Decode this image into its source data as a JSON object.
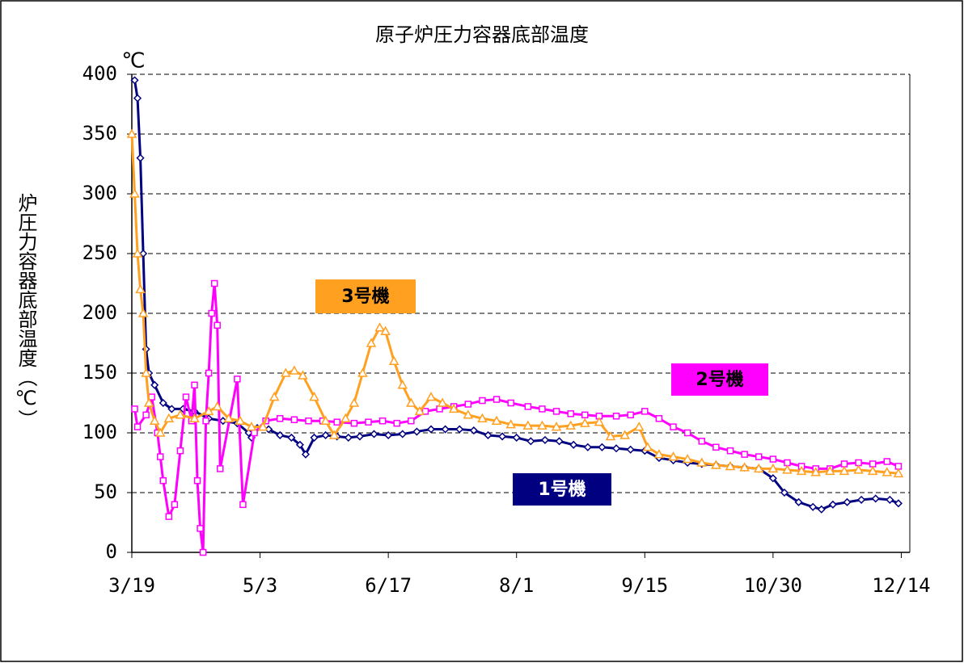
{
  "chart_data": {
    "type": "scatter",
    "title": "原子炉圧力容器底部温度",
    "y_label": "炉圧力容器底部温度（℃）",
    "y_unit": "℃",
    "xlim": [
      "3/19",
      "12/17"
    ],
    "xticks": [
      "3/19",
      "5/3",
      "6/17",
      "8/1",
      "9/15",
      "10/30",
      "12/14"
    ],
    "ylim": [
      0,
      400
    ],
    "yticks": [
      0,
      50,
      100,
      150,
      200,
      250,
      300,
      350,
      400
    ],
    "grid": true,
    "series": [
      {
        "name": "1号機",
        "color": "#000080",
        "marker": "diamond",
        "x": [
          "3/20",
          "3/21",
          "3/22",
          "3/23",
          "3/24",
          "3/25",
          "3/27",
          "3/30",
          "4/2",
          "4/6",
          "4/10",
          "4/15",
          "4/20",
          "4/25",
          "4/29",
          "4/30",
          "5/2",
          "5/6",
          "5/10",
          "5/14",
          "5/17",
          "5/19",
          "5/22",
          "5/26",
          "5/30",
          "6/3",
          "6/7",
          "6/12",
          "6/17",
          "6/22",
          "6/27",
          "7/2",
          "7/7",
          "7/12",
          "7/17",
          "7/22",
          "7/27",
          "8/1",
          "8/6",
          "8/11",
          "8/16",
          "8/21",
          "8/26",
          "8/31",
          "9/5",
          "9/10",
          "9/15",
          "9/20",
          "9/25",
          "9/30",
          "10/5",
          "10/10",
          "10/15",
          "10/20",
          "10/25",
          "10/30",
          "11/3",
          "11/8",
          "11/13",
          "11/16",
          "11/20",
          "11/25",
          "11/30",
          "12/5",
          "12/10",
          "12/13"
        ],
        "values": [
          395,
          380,
          330,
          250,
          170,
          150,
          140,
          125,
          120,
          120,
          118,
          112,
          110,
          108,
          100,
          96,
          104,
          103,
          98,
          96,
          90,
          82,
          96,
          98,
          97,
          96,
          97,
          99,
          98,
          99,
          101,
          103,
          103,
          103,
          102,
          98,
          97,
          96,
          93,
          94,
          93,
          90,
          88,
          88,
          87,
          86,
          85,
          79,
          77,
          75,
          74,
          73,
          72,
          71,
          70,
          62,
          50,
          42,
          38,
          36,
          40,
          42,
          44,
          45,
          44,
          41
        ]
      },
      {
        "name": "2号機",
        "color": "#ff00ff",
        "marker": "square",
        "x": [
          "3/20",
          "3/21",
          "3/24",
          "3/26",
          "3/28",
          "3/29",
          "3/30",
          "4/1",
          "4/3",
          "4/5",
          "4/7",
          "4/9",
          "4/10",
          "4/11",
          "4/12",
          "4/13",
          "4/14",
          "4/15",
          "4/16",
          "4/17",
          "4/18",
          "4/19",
          "4/25",
          "4/27",
          "5/1",
          "5/5",
          "5/10",
          "5/15",
          "5/20",
          "5/25",
          "5/30",
          "6/5",
          "6/10",
          "6/15",
          "6/20",
          "6/25",
          "6/30",
          "7/5",
          "7/10",
          "7/15",
          "7/20",
          "7/25",
          "7/30",
          "8/5",
          "8/10",
          "8/15",
          "8/20",
          "8/25",
          "8/30",
          "9/5",
          "9/10",
          "9/15",
          "9/20",
          "9/25",
          "9/30",
          "10/5",
          "10/10",
          "10/15",
          "10/20",
          "10/25",
          "10/30",
          "11/4",
          "11/9",
          "11/14",
          "11/19",
          "11/24",
          "11/29",
          "12/4",
          "12/9",
          "12/13"
        ],
        "values": [
          120,
          105,
          115,
          130,
          100,
          80,
          60,
          30,
          40,
          85,
          130,
          110,
          140,
          60,
          20,
          0,
          110,
          150,
          200,
          225,
          190,
          70,
          145,
          40,
          100,
          110,
          112,
          111,
          110,
          110,
          109,
          108,
          109,
          110,
          108,
          110,
          118,
          120,
          122,
          124,
          127,
          128,
          125,
          122,
          120,
          118,
          116,
          115,
          114,
          114,
          115,
          118,
          112,
          105,
          100,
          93,
          88,
          85,
          82,
          80,
          78,
          75,
          72,
          70,
          70,
          74,
          75,
          74,
          76,
          72
        ]
      },
      {
        "name": "3号機",
        "color": "#ffa020",
        "marker": "triangle",
        "x": [
          "3/19",
          "3/20",
          "3/21",
          "3/22",
          "3/23",
          "3/24",
          "3/25",
          "3/27",
          "3/29",
          "4/1",
          "4/5",
          "4/10",
          "4/15",
          "4/18",
          "4/22",
          "4/26",
          "4/30",
          "5/4",
          "5/8",
          "5/12",
          "5/15",
          "5/18",
          "5/22",
          "5/26",
          "5/29",
          "6/2",
          "6/5",
          "6/8",
          "6/11",
          "6/14",
          "6/16",
          "6/19",
          "6/22",
          "6/25",
          "6/28",
          "7/2",
          "7/6",
          "7/10",
          "7/15",
          "7/20",
          "7/25",
          "7/30",
          "8/5",
          "8/10",
          "8/15",
          "8/20",
          "8/25",
          "8/30",
          "9/3",
          "9/8",
          "9/13",
          "9/16",
          "9/20",
          "9/25",
          "9/30",
          "10/5",
          "10/10",
          "10/15",
          "10/20",
          "10/25",
          "10/30",
          "11/4",
          "11/9",
          "11/14",
          "11/19",
          "11/24",
          "11/29",
          "12/4",
          "12/9",
          "12/13"
        ],
        "values": [
          350,
          300,
          250,
          220,
          200,
          150,
          125,
          110,
          100,
          112,
          115,
          112,
          118,
          122,
          112,
          110,
          105,
          105,
          130,
          150,
          152,
          148,
          130,
          110,
          98,
          112,
          125,
          150,
          175,
          188,
          185,
          160,
          140,
          125,
          118,
          130,
          125,
          120,
          115,
          112,
          110,
          107,
          106,
          106,
          105,
          106,
          108,
          109,
          97,
          98,
          105,
          88,
          82,
          80,
          78,
          75,
          73,
          72,
          71,
          70,
          70,
          69,
          68,
          67,
          68,
          68,
          69,
          68,
          67,
          66
        ]
      }
    ]
  }
}
